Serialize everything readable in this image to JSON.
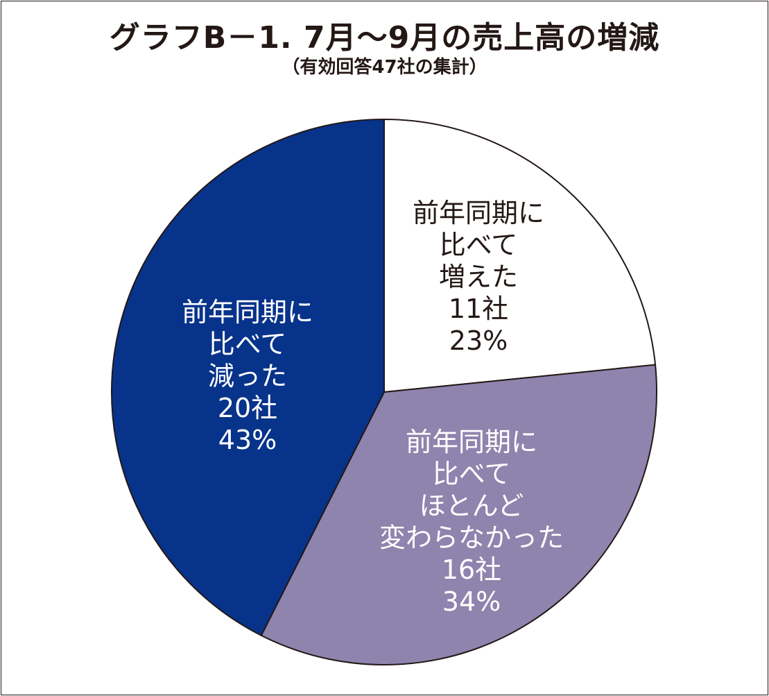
{
  "chart_data": {
    "type": "pie",
    "title": "グラフB－1.  7月～9月の売上高の増減",
    "subtitle": "（有効回答47社の集計）",
    "total": 47,
    "slices": [
      {
        "label_lines": [
          "前年同期に",
          "比べて",
          "増えた"
        ],
        "count_label": "11社",
        "percent_label": "23%",
        "value": 11,
        "color": "#ffffff",
        "text_color": "#231815"
      },
      {
        "label_lines": [
          "前年同期に",
          "比べて",
          "ほとんど",
          "変わらなかった"
        ],
        "count_label": "16社",
        "percent_label": "34%",
        "value": 16,
        "color": "#8e84ad",
        "text_color": "#ffffff"
      },
      {
        "label_lines": [
          "前年同期に",
          "比べて",
          "減った"
        ],
        "count_label": "20社",
        "percent_label": "43%",
        "value": 20,
        "color": "#07338a",
        "text_color": "#ffffff"
      }
    ]
  }
}
